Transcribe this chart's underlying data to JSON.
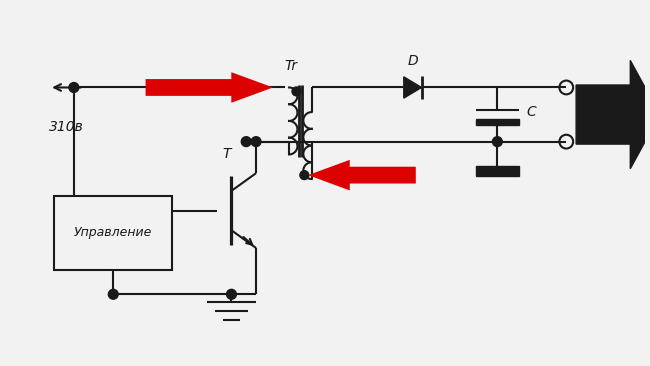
{
  "bg_color": "#f2f2f2",
  "line_color": "#1a1a1a",
  "red_color": "#dd0000",
  "label_310": "310в",
  "label_Tr": "Tr",
  "label_D": "D",
  "label_C": "C",
  "label_T": "T",
  "label_control": "Управление",
  "fig_width": 6.5,
  "fig_height": 3.66,
  "dpi": 100
}
